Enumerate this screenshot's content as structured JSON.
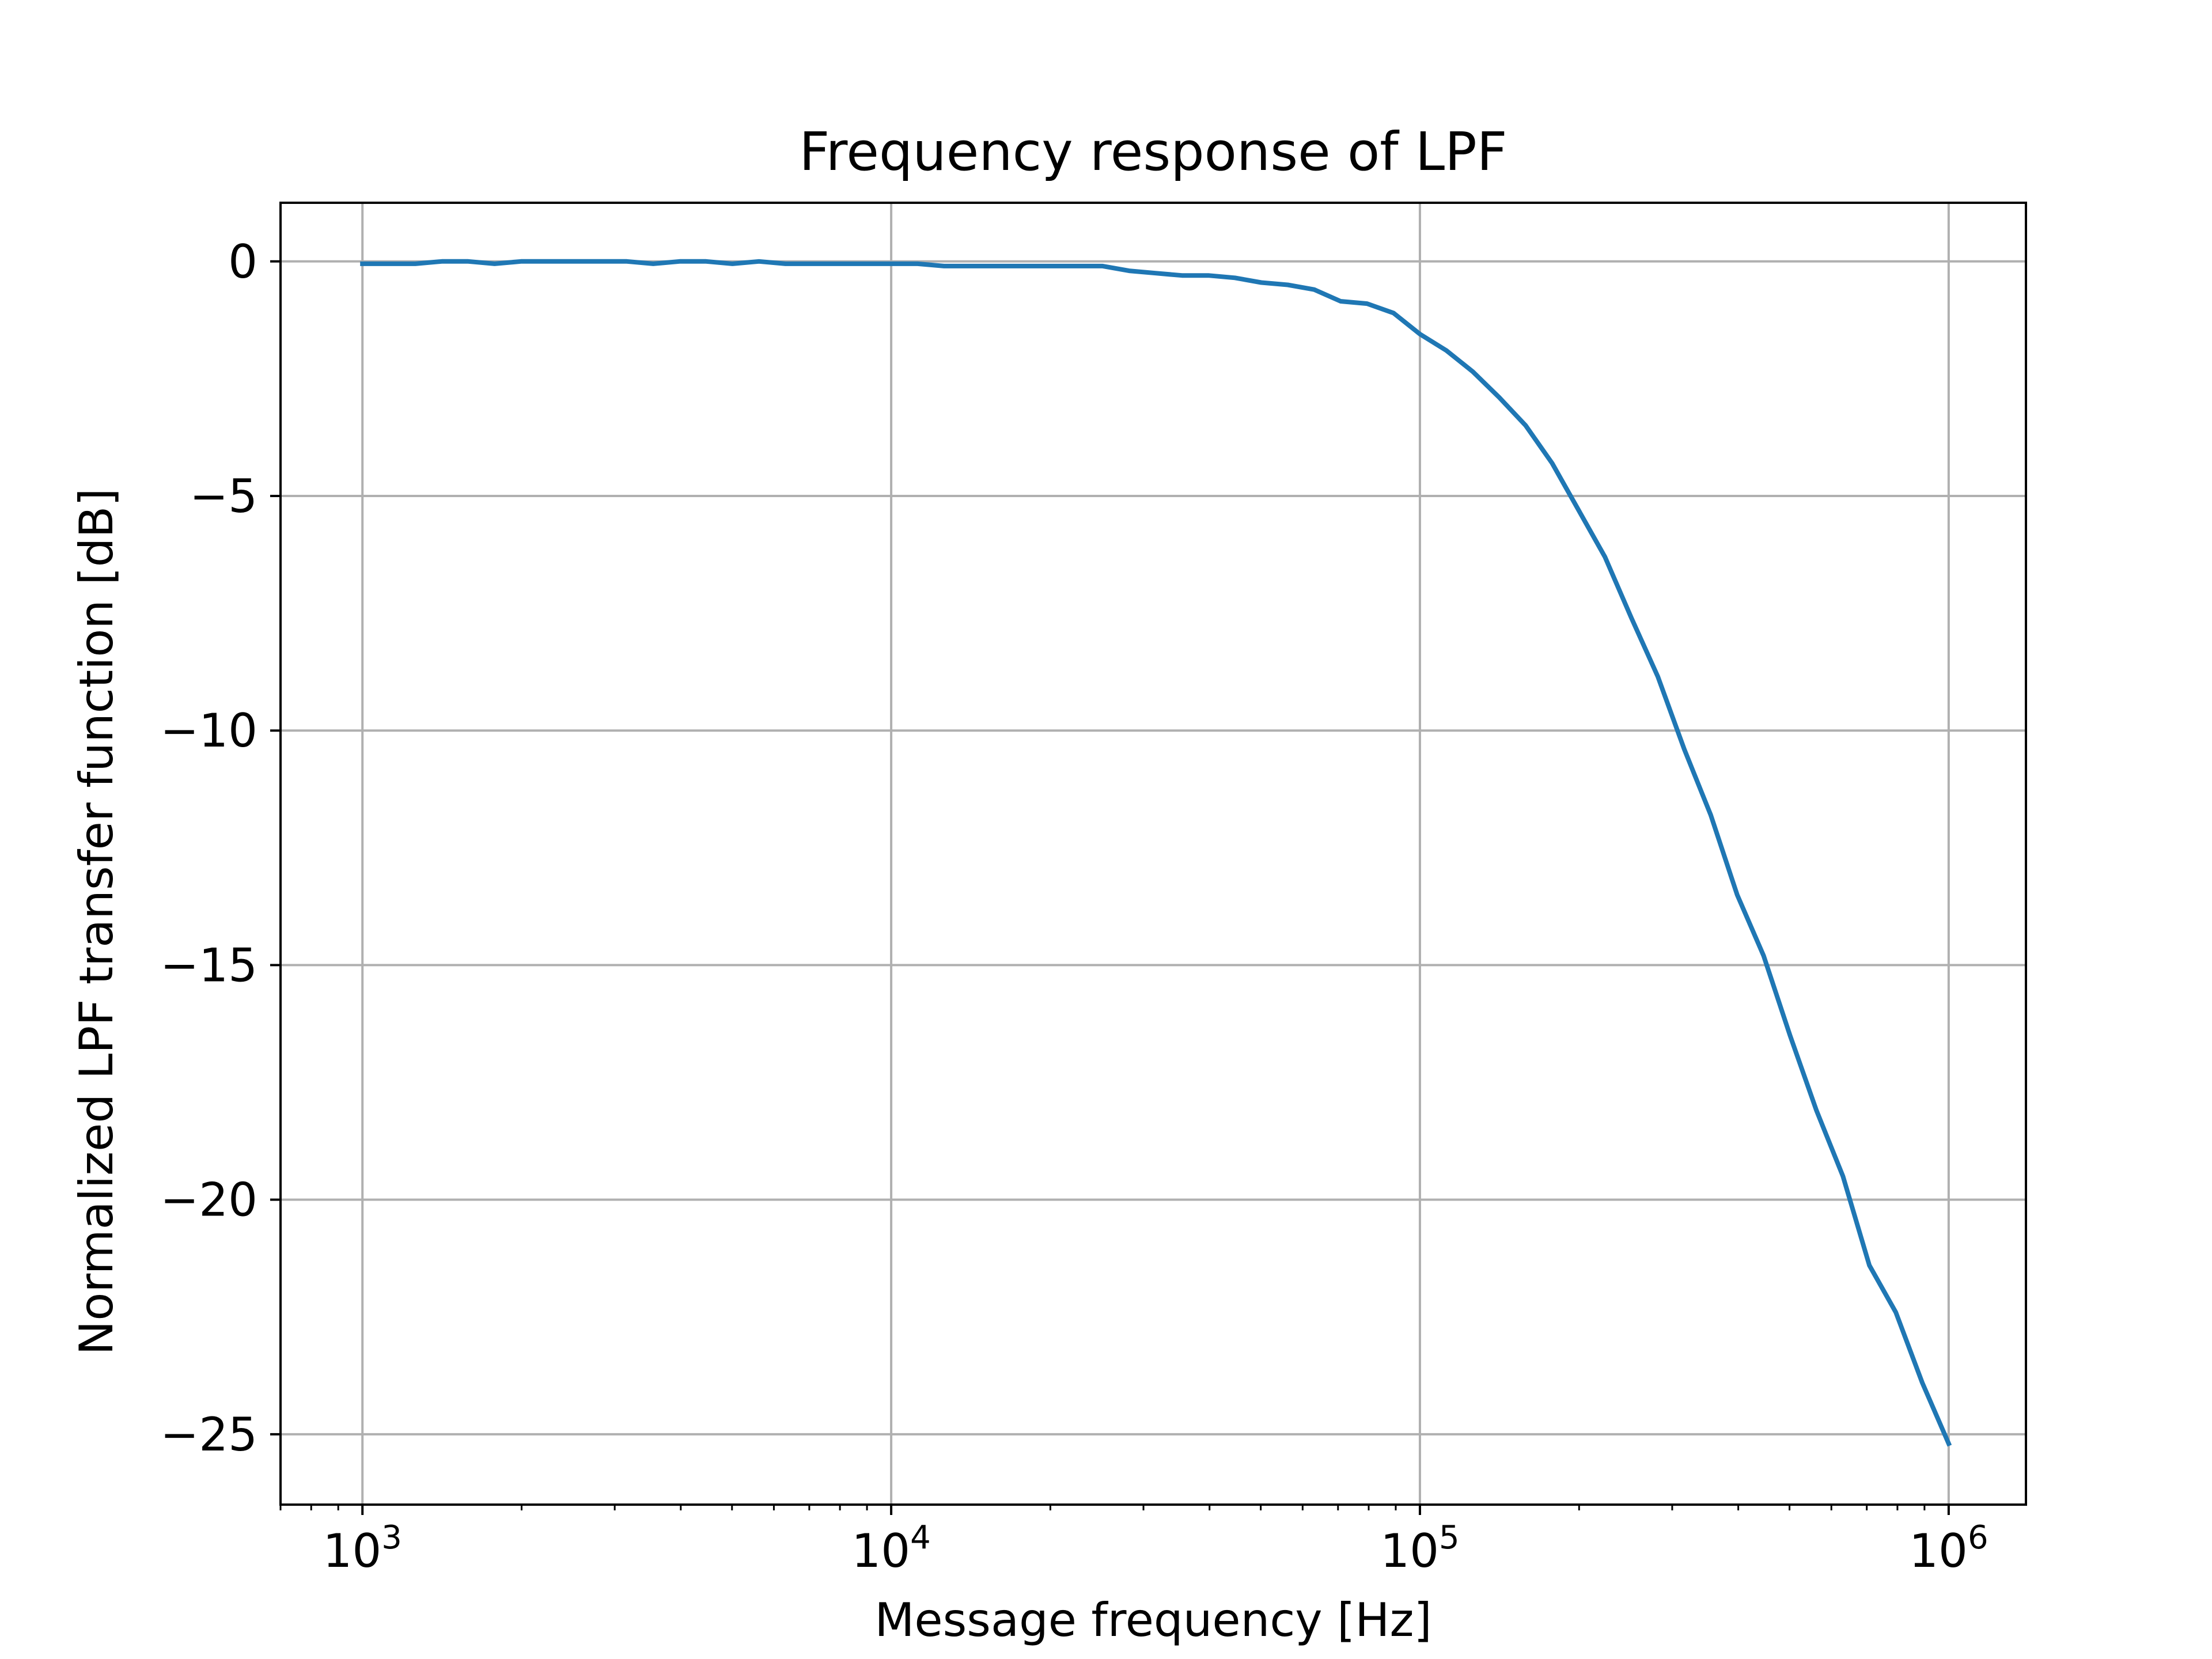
{
  "chart_data": {
    "type": "line",
    "title": "Frequency response of LPF",
    "xlabel": "Message frequency [Hz]",
    "ylabel": "Normalized LPF transfer function [dB]",
    "x_scale": "log",
    "xlim": [
      700,
      1400000
    ],
    "ylim": [
      -26.5,
      1.25
    ],
    "grid": true,
    "colors": {
      "line": "#1f77b4",
      "grid": "#b0b0b0",
      "axes": "#000000"
    },
    "x_ticks": [
      {
        "value": 1000,
        "base": "10",
        "exp": "3"
      },
      {
        "value": 10000,
        "base": "10",
        "exp": "4"
      },
      {
        "value": 100000,
        "base": "10",
        "exp": "5"
      },
      {
        "value": 1000000,
        "base": "10",
        "exp": "6"
      }
    ],
    "y_ticks": [
      {
        "value": 0,
        "label": "0"
      },
      {
        "value": -5,
        "label": "−5"
      },
      {
        "value": -10,
        "label": "−10"
      },
      {
        "value": -15,
        "label": "−15"
      },
      {
        "value": -20,
        "label": "−20"
      },
      {
        "value": -25,
        "label": "−25"
      }
    ],
    "series": [
      {
        "color": "#1f77b4",
        "x": [
          1000,
          1259,
          1413,
          1585,
          1778,
          1995,
          2239,
          2512,
          2818,
          3162,
          3548,
          3981,
          4467,
          5012,
          5623,
          6310,
          7079,
          7943,
          8913,
          10000,
          11220,
          12589,
          14125,
          15849,
          17783,
          19953,
          22387,
          25119,
          28184,
          31623,
          35481,
          39811,
          44668,
          50119,
          56234,
          63096,
          70795,
          79433,
          89125,
          100000,
          112202,
          125893,
          141254,
          158489,
          177828,
          199526,
          223872,
          251189,
          281838,
          316228,
          354813,
          398107,
          446684,
          501187,
          562341,
          630957,
          707946,
          794328,
          891251,
          1000000
        ],
        "y": [
          -0.05,
          -0.05,
          0.0,
          0.0,
          -0.05,
          0.0,
          0.0,
          0.0,
          0.0,
          0.0,
          -0.05,
          0.0,
          0.0,
          -0.05,
          0.0,
          -0.05,
          -0.05,
          -0.05,
          -0.05,
          -0.05,
          -0.05,
          -0.1,
          -0.1,
          -0.1,
          -0.1,
          -0.1,
          -0.1,
          -0.1,
          -0.2,
          -0.25,
          -0.3,
          -0.3,
          -0.35,
          -0.45,
          -0.5,
          -0.6,
          -0.85,
          -0.9,
          -1.1,
          -1.55,
          -1.9,
          -2.35,
          -2.9,
          -3.5,
          -4.3,
          -5.3,
          -6.3,
          -7.6,
          -8.85,
          -10.4,
          -11.8,
          -13.5,
          -14.8,
          -16.5,
          -18.1,
          -19.5,
          -21.4,
          -22.4,
          -23.9,
          -25.2
        ]
      }
    ]
  }
}
